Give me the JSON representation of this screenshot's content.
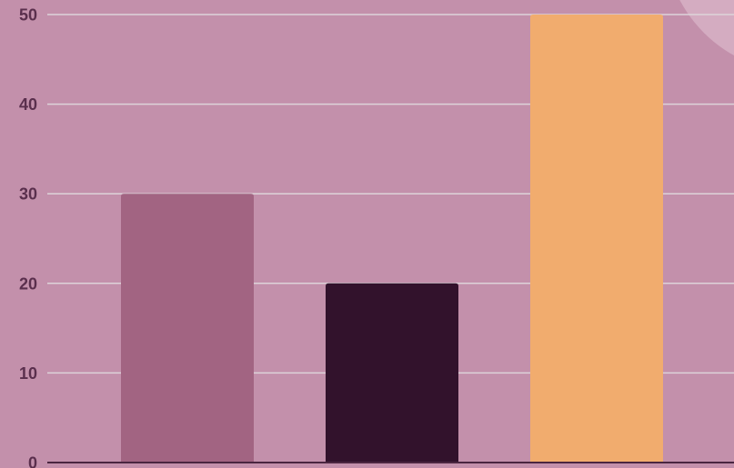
{
  "colors": {
    "background": "#c390ab",
    "corner_shape": "#d4acc1",
    "gridline": "#ddd3d9",
    "baseline": "#4a2640",
    "tick_label": "#5a2f4d"
  },
  "chart_data": {
    "type": "bar",
    "title": "",
    "xlabel": "",
    "ylabel": "",
    "ylim": [
      0,
      50
    ],
    "y_ticks": [
      0,
      10,
      20,
      30,
      40,
      50
    ],
    "y_tick_labels": [
      "0",
      "10",
      "20",
      "30",
      "40",
      "50"
    ],
    "grid": true,
    "legend": "none",
    "bars": [
      {
        "value": 30,
        "color": "#a26482"
      },
      {
        "value": 20,
        "color": "#32122c"
      },
      {
        "value": 50,
        "color": "#f1ac6e"
      }
    ]
  }
}
